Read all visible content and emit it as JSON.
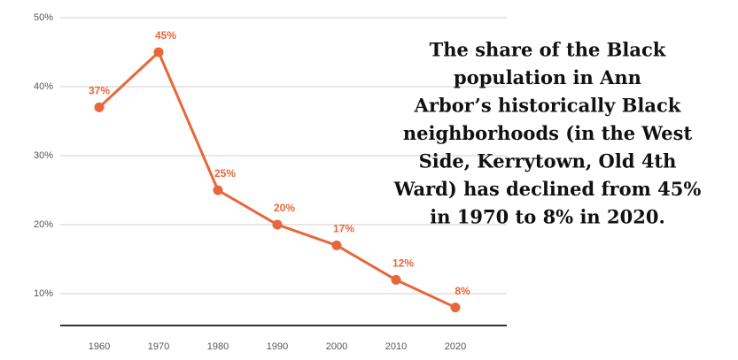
{
  "chart_data": {
    "type": "line",
    "categories": [
      "1960",
      "1970",
      "1980",
      "1990",
      "2000",
      "2010",
      "2020"
    ],
    "values": [
      37,
      45,
      25,
      20,
      17,
      12,
      8
    ],
    "value_labels": [
      "37%",
      "45%",
      "25%",
      "20%",
      "17%",
      "12%",
      "8%"
    ],
    "color": "#e8673a",
    "ylim": [
      5,
      50
    ],
    "yticks": [
      {
        "value": 10,
        "label": "10%"
      },
      {
        "value": 20,
        "label": "20%"
      },
      {
        "value": 30,
        "label": "30%"
      },
      {
        "value": 40,
        "label": "40%"
      },
      {
        "value": 50,
        "label": "50%"
      }
    ],
    "grid": true,
    "annotation": [
      "The share of the Black",
      "population in Ann",
      "Arbor’s historically Black",
      "neighborhoods (in the West",
      "Side, Kerrytown, Old 4th",
      "Ward) has declined from 45%",
      "in 1970 to 8% in 2020."
    ]
  }
}
